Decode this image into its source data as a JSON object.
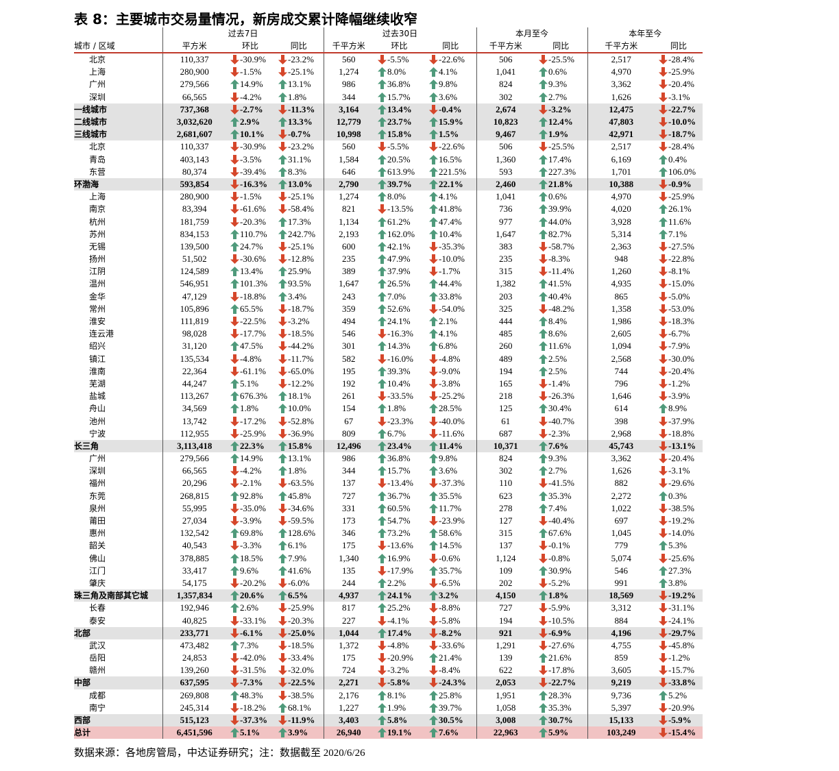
{
  "title": "表 8：主要城市交易量情况，新房成交累计降幅继续收窄",
  "header": {
    "groups": [
      "过去7日",
      "过去30日",
      "本月至今",
      "本年至今"
    ],
    "columns": [
      "城市 / 区域",
      "平方米",
      "环比",
      "同比",
      "千平方米",
      "环比",
      "同比",
      "千平方米",
      "同比",
      "千平方米",
      "同比"
    ]
  },
  "rows": [
    {
      "cells": [
        "北京",
        "110,337",
        "-30.9%",
        "-23.2%",
        "560",
        "-5.5%",
        "-22.6%",
        "506",
        "-25.5%",
        "2,517",
        "-28.4%"
      ]
    },
    {
      "cells": [
        "上海",
        "280,900",
        "-1.5%",
        "-25.1%",
        "1,274",
        "8.0%",
        "4.1%",
        "1,041",
        "0.6%",
        "4,970",
        "-25.9%"
      ]
    },
    {
      "cells": [
        "广州",
        "279,566",
        "14.9%",
        "13.1%",
        "986",
        "36.8%",
        "9.8%",
        "824",
        "9.3%",
        "3,362",
        "-20.4%"
      ]
    },
    {
      "cells": [
        "深圳",
        "66,565",
        "-4.2%",
        "1.8%",
        "344",
        "15.7%",
        "3.6%",
        "302",
        "2.7%",
        "1,626",
        "-3.1%"
      ]
    },
    {
      "cells": [
        "一线城市",
        "737,368",
        "-2.7%",
        "-11.3%",
        "3,164",
        "13.4%",
        "-0.4%",
        "2,674",
        "-3.2%",
        "12,475",
        "-22.7%"
      ],
      "shade": "#e2e2e2"
    },
    {
      "cells": [
        "二线城市",
        "3,032,620",
        "2.9%",
        "13.3%",
        "12,779",
        "23.7%",
        "15.9%",
        "10,823",
        "12.4%",
        "47,803",
        "-10.0%"
      ],
      "shade": "#e2e2e2"
    },
    {
      "cells": [
        "三线城市",
        "2,681,607",
        "10.1%",
        "-0.7%",
        "10,998",
        "15.8%",
        "1.5%",
        "9,467",
        "1.9%",
        "42,971",
        "-18.7%"
      ],
      "shade": "#e2e2e2"
    },
    {
      "cells": [
        "北京",
        "110,337",
        "-30.9%",
        "-23.2%",
        "560",
        "-5.5%",
        "-22.6%",
        "506",
        "-25.5%",
        "2,517",
        "-28.4%"
      ]
    },
    {
      "cells": [
        "青岛",
        "403,143",
        "-3.5%",
        "31.1%",
        "1,584",
        "20.5%",
        "16.5%",
        "1,360",
        "17.4%",
        "6,169",
        "0.4%"
      ]
    },
    {
      "cells": [
        "东营",
        "80,374",
        "-39.4%",
        "8.3%",
        "646",
        "613.9%",
        "221.5%",
        "593",
        "227.3%",
        "1,701",
        "106.0%"
      ]
    },
    {
      "cells": [
        "环渤海",
        "593,854",
        "-16.3%",
        "13.0%",
        "2,790",
        "39.7%",
        "22.1%",
        "2,460",
        "21.8%",
        "10,388",
        "-0.9%"
      ],
      "shade": "#e2e2e2"
    },
    {
      "cells": [
        "上海",
        "280,900",
        "-1.5%",
        "-25.1%",
        "1,274",
        "8.0%",
        "4.1%",
        "1,041",
        "0.6%",
        "4,970",
        "-25.9%"
      ]
    },
    {
      "cells": [
        "南京",
        "83,394",
        "-61.6%",
        "-58.4%",
        "821",
        "-13.5%",
        "41.8%",
        "736",
        "39.9%",
        "4,020",
        "26.1%"
      ]
    },
    {
      "cells": [
        "杭州",
        "181,759",
        "-20.3%",
        "17.3%",
        "1,134",
        "61.2%",
        "47.4%",
        "977",
        "44.0%",
        "3,928",
        "11.6%"
      ]
    },
    {
      "cells": [
        "苏州",
        "834,153",
        "110.7%",
        "242.7%",
        "2,193",
        "162.0%",
        "10.4%",
        "1,647",
        "82.7%",
        "5,314",
        "7.1%"
      ]
    },
    {
      "cells": [
        "无锡",
        "139,500",
        "24.7%",
        "-25.1%",
        "600",
        "42.1%",
        "-35.3%",
        "383",
        "-58.7%",
        "2,363",
        "-27.5%"
      ]
    },
    {
      "cells": [
        "扬州",
        "51,502",
        "-30.6%",
        "-12.8%",
        "235",
        "47.9%",
        "-10.0%",
        "235",
        "-8.3%",
        "948",
        "-22.8%"
      ]
    },
    {
      "cells": [
        "江阴",
        "124,589",
        "13.4%",
        "25.9%",
        "389",
        "37.9%",
        "-1.7%",
        "315",
        "-11.4%",
        "1,260",
        "-8.1%"
      ]
    },
    {
      "cells": [
        "温州",
        "546,951",
        "101.3%",
        "93.5%",
        "1,647",
        "26.5%",
        "44.4%",
        "1,382",
        "41.5%",
        "4,935",
        "-15.0%"
      ]
    },
    {
      "cells": [
        "金华",
        "47,129",
        "-18.8%",
        "3.4%",
        "243",
        "7.0%",
        "33.8%",
        "203",
        "40.4%",
        "865",
        "-5.0%"
      ]
    },
    {
      "cells": [
        "常州",
        "105,896",
        "65.5%",
        "-18.7%",
        "359",
        "52.6%",
        "-54.0%",
        "325",
        "-48.2%",
        "1,358",
        "-53.0%"
      ]
    },
    {
      "cells": [
        "淮安",
        "111,819",
        "-22.5%",
        "-3.2%",
        "494",
        "24.1%",
        "2.1%",
        "444",
        "8.4%",
        "1,986",
        "-18.3%"
      ]
    },
    {
      "cells": [
        "连云港",
        "98,028",
        "-17.7%",
        "-18.5%",
        "546",
        "-16.3%",
        "4.1%",
        "485",
        "8.6%",
        "2,605",
        "-6.7%"
      ]
    },
    {
      "cells": [
        "绍兴",
        "31,120",
        "47.5%",
        "-44.2%",
        "301",
        "14.3%",
        "6.8%",
        "260",
        "11.6%",
        "1,094",
        "-7.9%"
      ]
    },
    {
      "cells": [
        "镇江",
        "135,534",
        "-4.8%",
        "-11.7%",
        "582",
        "-16.0%",
        "-4.8%",
        "489",
        "2.5%",
        "2,568",
        "-30.0%"
      ]
    },
    {
      "cells": [
        "淮南",
        "22,364",
        "-61.1%",
        "-65.0%",
        "195",
        "39.3%",
        "-9.0%",
        "194",
        "2.5%",
        "744",
        "-20.4%"
      ]
    },
    {
      "cells": [
        "芜湖",
        "44,247",
        "5.1%",
        "-12.2%",
        "192",
        "10.4%",
        "-3.8%",
        "165",
        "-1.4%",
        "796",
        "-1.2%"
      ]
    },
    {
      "cells": [
        "盐城",
        "113,267",
        "676.3%",
        "18.1%",
        "261",
        "-33.5%",
        "-25.2%",
        "218",
        "-26.3%",
        "1,646",
        "-3.9%"
      ]
    },
    {
      "cells": [
        "舟山",
        "34,569",
        "1.8%",
        "10.0%",
        "154",
        "1.8%",
        "28.5%",
        "125",
        "30.4%",
        "614",
        "8.9%"
      ]
    },
    {
      "cells": [
        "池州",
        "13,742",
        "-17.2%",
        "-52.8%",
        "67",
        "-23.3%",
        "-40.0%",
        "61",
        "-40.7%",
        "398",
        "-37.9%"
      ]
    },
    {
      "cells": [
        "宁波",
        "112,955",
        "-25.9%",
        "-36.9%",
        "809",
        "6.7%",
        "-11.6%",
        "687",
        "-2.3%",
        "2,968",
        "-18.8%"
      ]
    },
    {
      "cells": [
        "长三角",
        "3,113,418",
        "22.3%",
        "15.8%",
        "12,496",
        "23.4%",
        "11.4%",
        "10,371",
        "7.6%",
        "45,743",
        "-13.1%"
      ],
      "shade": "#e2e2e2"
    },
    {
      "cells": [
        "广州",
        "279,566",
        "14.9%",
        "13.1%",
        "986",
        "36.8%",
        "9.8%",
        "824",
        "9.3%",
        "3,362",
        "-20.4%"
      ]
    },
    {
      "cells": [
        "深圳",
        "66,565",
        "-4.2%",
        "1.8%",
        "344",
        "15.7%",
        "3.6%",
        "302",
        "2.7%",
        "1,626",
        "-3.1%"
      ]
    },
    {
      "cells": [
        "福州",
        "20,296",
        "-2.1%",
        "-63.5%",
        "137",
        "-13.4%",
        "-37.3%",
        "110",
        "-41.5%",
        "882",
        "-29.6%"
      ]
    },
    {
      "cells": [
        "东莞",
        "268,815",
        "92.8%",
        "45.8%",
        "727",
        "36.7%",
        "35.5%",
        "623",
        "35.3%",
        "2,272",
        "0.3%"
      ]
    },
    {
      "cells": [
        "泉州",
        "55,995",
        "-35.0%",
        "-34.6%",
        "331",
        "60.5%",
        "11.7%",
        "278",
        "7.4%",
        "1,022",
        "-38.5%"
      ]
    },
    {
      "cells": [
        "莆田",
        "27,034",
        "-3.9%",
        "-59.5%",
        "173",
        "54.7%",
        "-23.9%",
        "127",
        "-40.4%",
        "697",
        "-19.2%"
      ]
    },
    {
      "cells": [
        "惠州",
        "132,542",
        "69.8%",
        "128.6%",
        "346",
        "73.2%",
        "58.6%",
        "315",
        "67.6%",
        "1,045",
        "-14.0%"
      ]
    },
    {
      "cells": [
        "韶关",
        "40,543",
        "-3.3%",
        "6.1%",
        "175",
        "-13.6%",
        "14.5%",
        "137",
        "-0.1%",
        "779",
        "5.3%"
      ]
    },
    {
      "cells": [
        "佛山",
        "378,885",
        "18.5%",
        "7.9%",
        "1,340",
        "16.9%",
        "-0.6%",
        "1,124",
        "-0.8%",
        "5,074",
        "-25.6%"
      ]
    },
    {
      "cells": [
        "江门",
        "33,417",
        "9.6%",
        "41.6%",
        "135",
        "-17.9%",
        "35.7%",
        "109",
        "30.9%",
        "546",
        "27.3%"
      ]
    },
    {
      "cells": [
        "肇庆",
        "54,175",
        "-20.2%",
        "-6.0%",
        "244",
        "2.2%",
        "-6.5%",
        "202",
        "-5.2%",
        "991",
        "3.8%"
      ]
    },
    {
      "cells": [
        "珠三角及南部其它城",
        "1,357,834",
        "20.6%",
        "6.5%",
        "4,937",
        "24.1%",
        "3.2%",
        "4,150",
        "1.8%",
        "18,569",
        "-19.2%"
      ],
      "shade": "#e2e2e2"
    },
    {
      "cells": [
        "长春",
        "192,946",
        "2.6%",
        "-25.9%",
        "817",
        "25.2%",
        "-8.8%",
        "727",
        "-5.9%",
        "3,312",
        "-31.1%"
      ]
    },
    {
      "cells": [
        "泰安",
        "40,825",
        "-33.1%",
        "-20.3%",
        "227",
        "-4.1%",
        "-5.8%",
        "194",
        "-10.5%",
        "884",
        "-24.1%"
      ]
    },
    {
      "cells": [
        "北部",
        "233,771",
        "-6.1%",
        "-25.0%",
        "1,044",
        "17.4%",
        "-8.2%",
        "921",
        "-6.9%",
        "4,196",
        "-29.7%"
      ],
      "shade": "#e2e2e2"
    },
    {
      "cells": [
        "武汉",
        "473,482",
        "7.3%",
        "-18.5%",
        "1,372",
        "-4.8%",
        "-33.6%",
        "1,291",
        "-27.6%",
        "4,755",
        "-45.8%"
      ]
    },
    {
      "cells": [
        "岳阳",
        "24,853",
        "-42.0%",
        "-33.4%",
        "175",
        "-20.9%",
        "21.4%",
        "139",
        "21.6%",
        "859",
        "-1.2%"
      ]
    },
    {
      "cells": [
        "赣州",
        "139,260",
        "-31.5%",
        "-32.0%",
        "724",
        "-3.2%",
        "-8.4%",
        "622",
        "-17.8%",
        "3,605",
        "-15.7%"
      ]
    },
    {
      "cells": [
        "中部",
        "637,595",
        "-7.3%",
        "-22.5%",
        "2,271",
        "-5.8%",
        "-24.3%",
        "2,053",
        "-22.7%",
        "9,219",
        "-33.8%"
      ],
      "shade": "#e2e2e2"
    },
    {
      "cells": [
        "成都",
        "269,808",
        "48.3%",
        "-38.5%",
        "2,176",
        "8.1%",
        "25.8%",
        "1,951",
        "28.3%",
        "9,736",
        "5.2%"
      ]
    },
    {
      "cells": [
        "南宁",
        "245,314",
        "-18.2%",
        "68.1%",
        "1,227",
        "1.9%",
        "39.7%",
        "1,058",
        "35.3%",
        "5,397",
        "-20.9%"
      ]
    },
    {
      "cells": [
        "西部",
        "515,123",
        "-37.3%",
        "-11.9%",
        "3,403",
        "5.8%",
        "30.5%",
        "3,008",
        "30.7%",
        "15,133",
        "-5.9%"
      ],
      "shade": "#e2e2e2"
    },
    {
      "cells": [
        "总计",
        "6,451,596",
        "5.1%",
        "3.9%",
        "26,940",
        "19.1%",
        "7.6%",
        "22,963",
        "5.9%",
        "103,249",
        "-15.4%"
      ],
      "shade": "#f1c3c3"
    }
  ],
  "source": "数据来源：各地房管局，中达证券研究；注：数据截至 2020/6/26"
}
